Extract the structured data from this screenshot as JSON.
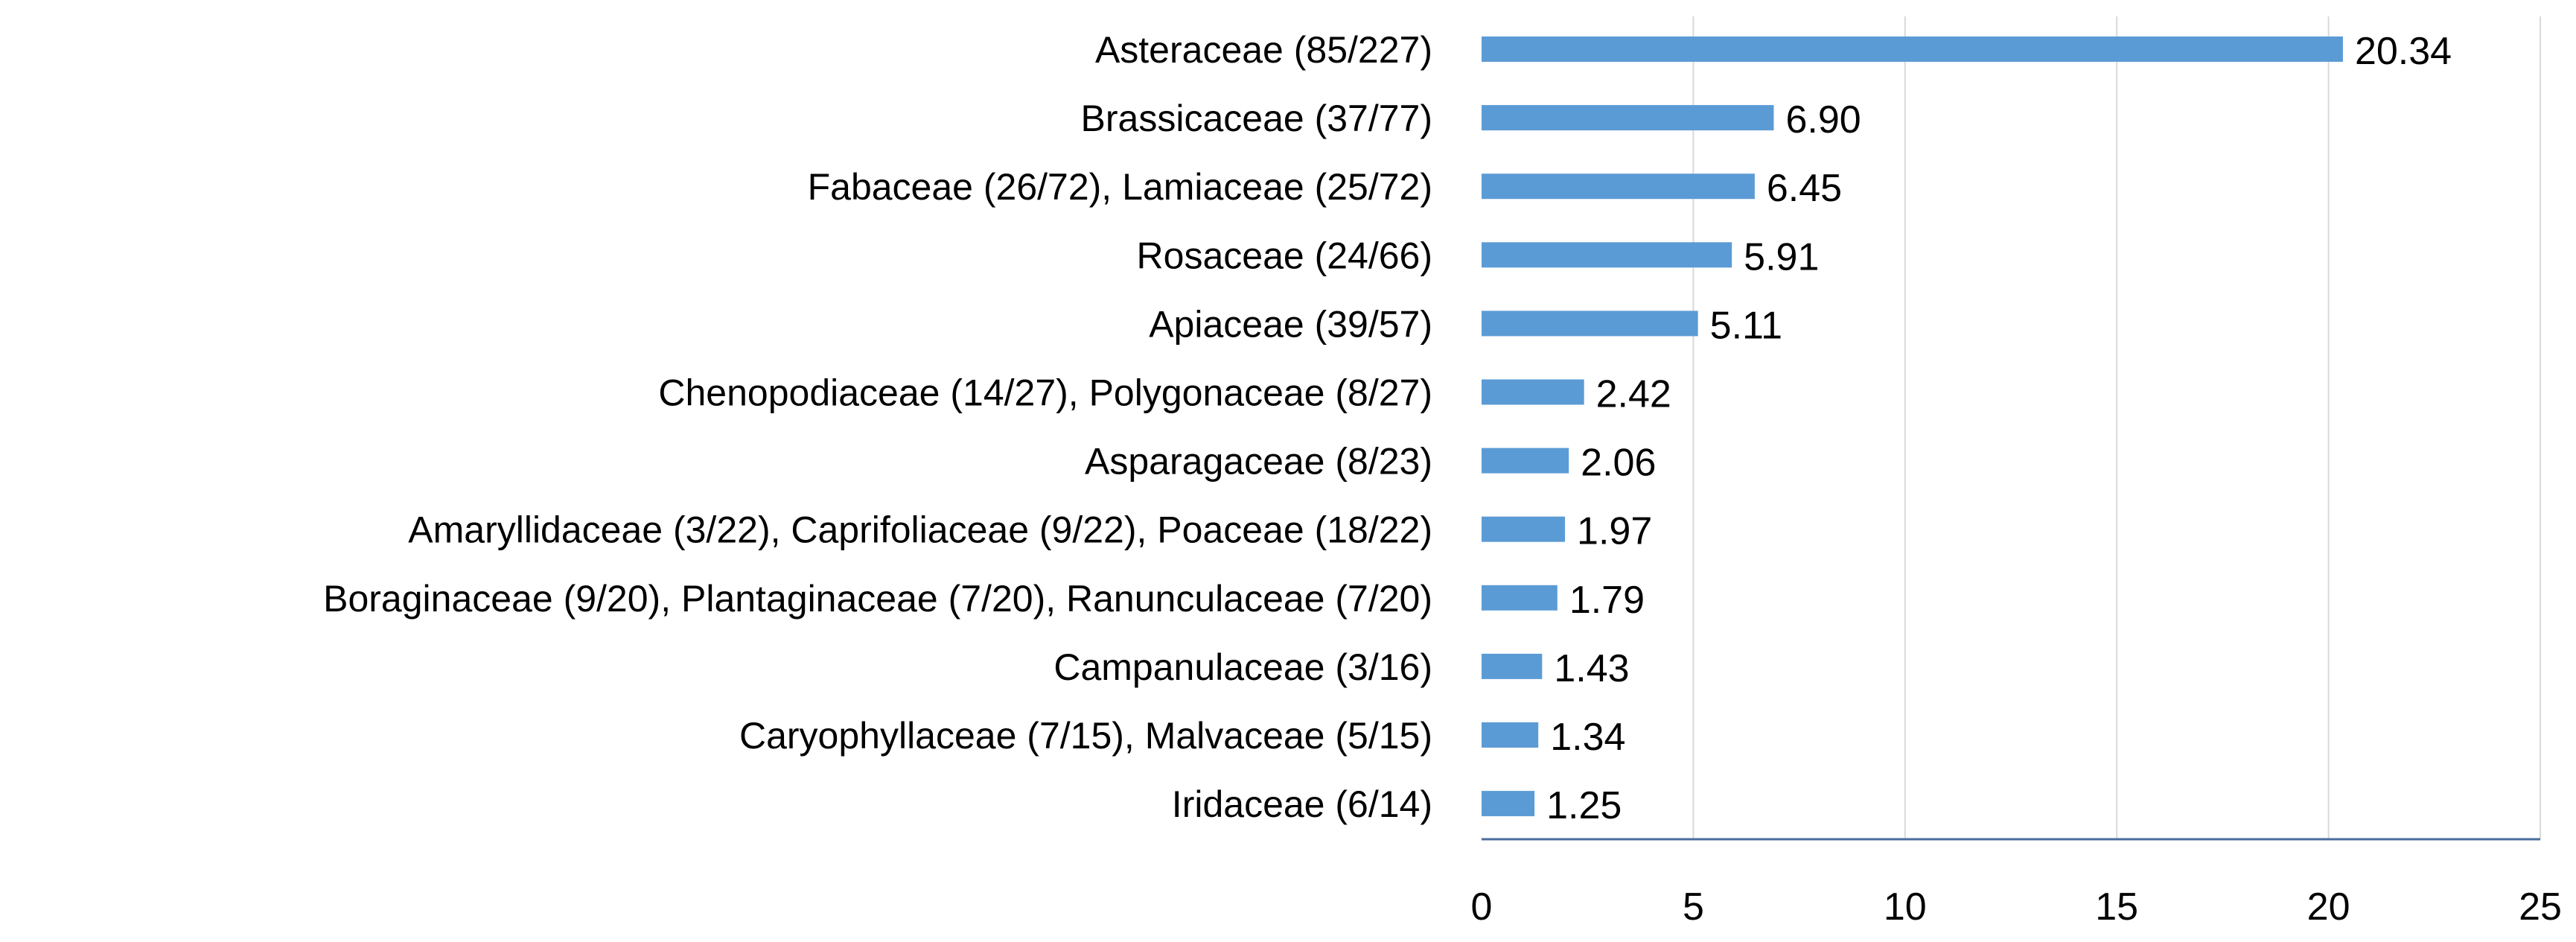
{
  "chart_data": {
    "type": "bar",
    "orientation": "horizontal",
    "categories": [
      "Asteraceae (85/227)",
      "Brassicaceae (37/77)",
      "Fabaceae (26/72), Lamiaceae (25/72)",
      "Rosaceae (24/66)",
      "Apiaceae (39/57)",
      "Chenopodiaceae (14/27), Polygonaceae (8/27)",
      "Asparagaceae (8/23)",
      "Amaryllidaceae (3/22), Caprifoliaceae (9/22), Poaceae (18/22)",
      "Boraginaceae (9/20), Plantaginaceae (7/20), Ranunculaceae (7/20)",
      "Campanulaceae (3/16)",
      "Caryophyllaceae (7/15), Malvaceae (5/15)",
      "Iridaceae (6/14)"
    ],
    "values": [
      20.34,
      6.9,
      6.45,
      5.91,
      5.11,
      2.42,
      2.06,
      1.97,
      1.79,
      1.43,
      1.34,
      1.25
    ],
    "value_labels": [
      "20.34",
      "6.90",
      "6.45",
      "5.91",
      "5.11",
      "2.42",
      "2.06",
      "1.97",
      "1.79",
      "1.43",
      "1.34",
      "1.25"
    ],
    "xlim": [
      0,
      25
    ],
    "xticks": [
      0,
      5,
      10,
      15,
      20,
      25
    ],
    "xtick_labels": [
      "0",
      "5",
      "10",
      "15",
      "20",
      "25"
    ],
    "title": "",
    "xlabel": "",
    "ylabel": "",
    "grid": "vertical",
    "legend": "none",
    "bar_color": "#5b9bd5",
    "grid_color": "#d9d9d9",
    "axis_color": "#4a6d9c"
  }
}
